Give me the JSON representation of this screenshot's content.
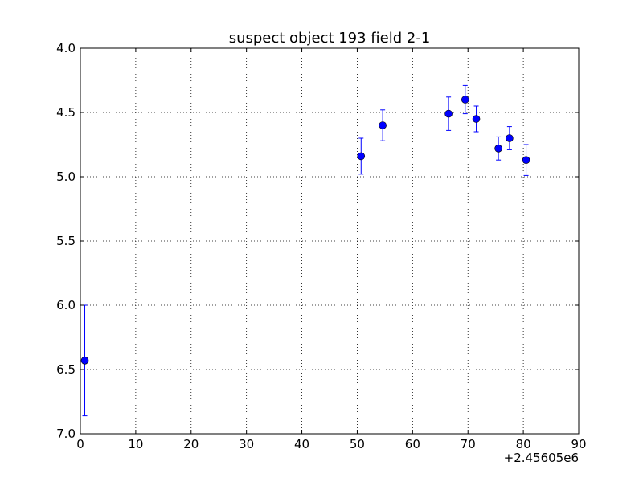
{
  "chart_data": {
    "type": "scatter",
    "title": "suspect object 193 field 2-1",
    "xlabel": "",
    "ylabel": "",
    "x_offset_label": "+2.45605e6",
    "xlim": [
      0,
      90
    ],
    "ylim": [
      7.0,
      4.0
    ],
    "y_inverted": true,
    "grid": true,
    "xticks": [
      "0",
      "10",
      "20",
      "30",
      "40",
      "50",
      "60",
      "70",
      "80",
      "90"
    ],
    "yticks": [
      "4.0",
      "4.5",
      "5.0",
      "5.5",
      "6.0",
      "6.5",
      "7.0"
    ],
    "marker_color": "#0000ff",
    "series": [
      {
        "points": [
          {
            "x": 0.8,
            "y": 6.43,
            "err": 0.43
          },
          {
            "x": 50.7,
            "y": 4.84,
            "err": 0.14
          },
          {
            "x": 54.6,
            "y": 4.6,
            "err": 0.12
          },
          {
            "x": 66.5,
            "y": 4.51,
            "err": 0.13
          },
          {
            "x": 69.5,
            "y": 4.4,
            "err": 0.11
          },
          {
            "x": 71.5,
            "y": 4.55,
            "err": 0.1
          },
          {
            "x": 75.5,
            "y": 4.78,
            "err": 0.09
          },
          {
            "x": 77.5,
            "y": 4.7,
            "err": 0.09
          },
          {
            "x": 80.5,
            "y": 4.87,
            "err": 0.12
          }
        ]
      }
    ]
  }
}
